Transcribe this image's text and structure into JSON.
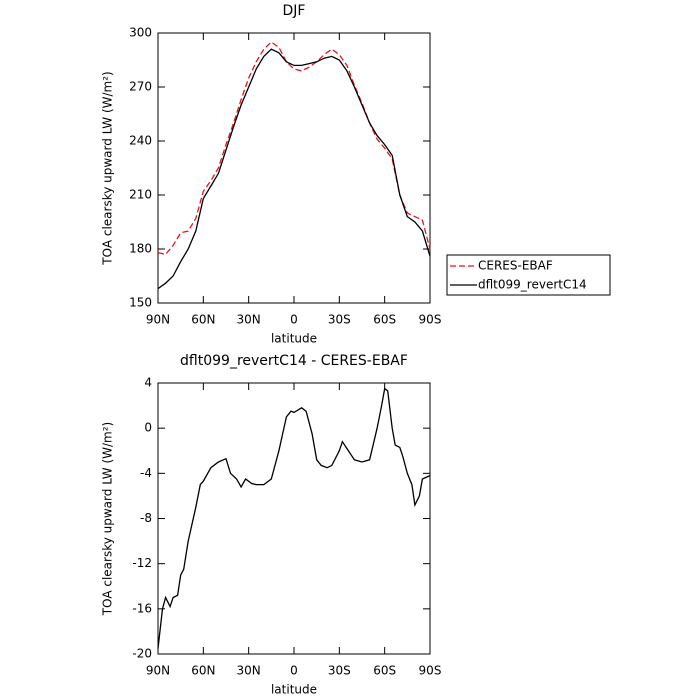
{
  "chart_data": [
    {
      "type": "line",
      "title": "DJF",
      "xlabel": "latitude",
      "ylabel": "TOA clearsky upward LW (W/m²)",
      "x": [
        90,
        85,
        80,
        75,
        70,
        65,
        60,
        55,
        50,
        45,
        40,
        35,
        30,
        25,
        20,
        15,
        10,
        5,
        0,
        -5,
        -10,
        -15,
        -20,
        -25,
        -30,
        -35,
        -40,
        -45,
        -50,
        -55,
        -60,
        -65,
        -70,
        -75,
        -80,
        -85,
        -90
      ],
      "series": [
        {
          "name": "CERES-EBAF",
          "color": "#e8141c",
          "dash": true,
          "values": [
            178,
            177,
            182,
            189,
            190,
            197,
            212,
            218,
            225,
            238,
            250,
            263,
            275,
            284,
            291,
            295,
            292,
            284,
            280,
            279,
            281,
            284,
            288,
            291,
            288,
            282,
            271,
            261,
            250,
            241,
            236,
            230,
            210,
            200,
            198,
            196,
            180
          ]
        },
        {
          "name": "dflt099_revertC14",
          "color": "#000000",
          "dash": false,
          "values": [
            158,
            161,
            165,
            173,
            180,
            190,
            208,
            215,
            222,
            235,
            248,
            260,
            270,
            280,
            287,
            291,
            289,
            284,
            282,
            282,
            283,
            284,
            286,
            287,
            285,
            279,
            270,
            260,
            250,
            243,
            238,
            232,
            210,
            198,
            195,
            190,
            176
          ]
        }
      ],
      "xlim": [
        90,
        -90
      ],
      "xticks": [
        {
          "value": 90,
          "label": "90N"
        },
        {
          "value": 60,
          "label": "60N"
        },
        {
          "value": 30,
          "label": "30N"
        },
        0,
        {
          "value": -30,
          "label": "30S"
        },
        {
          "value": -60,
          "label": "60S"
        },
        {
          "value": -90,
          "label": "90S"
        }
      ],
      "ylim": [
        150,
        300
      ],
      "yticks": [
        150,
        180,
        210,
        240,
        270,
        300
      ],
      "legend": "right"
    },
    {
      "type": "line",
      "title": "dflt099_revertC14 - CERES-EBAF",
      "xlabel": "latitude",
      "ylabel": "TOA clearsky upward LW (W/m²)",
      "x": [
        90,
        87,
        85,
        82,
        80,
        77,
        75,
        73,
        70,
        65,
        62,
        60,
        55,
        50,
        45,
        42,
        38,
        35,
        32,
        28,
        25,
        20,
        15,
        10,
        5,
        2,
        0,
        -5,
        -8,
        -12,
        -15,
        -18,
        -22,
        -25,
        -30,
        -32,
        -35,
        -40,
        -45,
        -50,
        -55,
        -58,
        -60,
        -62,
        -65,
        -67,
        -70,
        -72,
        -75,
        -78,
        -80,
        -83,
        -85,
        -90
      ],
      "series": [
        {
          "color": "#000000",
          "dash": false,
          "values": [
            -19.5,
            -16,
            -15,
            -15.8,
            -15,
            -14.8,
            -13,
            -12.5,
            -10,
            -7,
            -5,
            -4.7,
            -3.5,
            -3,
            -2.7,
            -4,
            -4.5,
            -5.2,
            -4.5,
            -4.9,
            -5,
            -5,
            -4.5,
            -2,
            1,
            1.5,
            1.4,
            1.8,
            1.5,
            -0.5,
            -2.8,
            -3.3,
            -3.5,
            -3.3,
            -2,
            -1.2,
            -1.8,
            -2.8,
            -3,
            -2.8,
            0,
            2,
            3.5,
            3.3,
            0,
            -1.5,
            -1.7,
            -2.5,
            -4,
            -5,
            -6.8,
            -6,
            -4.5,
            -4.2
          ]
        }
      ],
      "xlim": [
        90,
        -90
      ],
      "xticks": [
        {
          "value": 90,
          "label": "90N"
        },
        {
          "value": 60,
          "label": "60N"
        },
        {
          "value": 30,
          "label": "30N"
        },
        0,
        {
          "value": -30,
          "label": "30S"
        },
        {
          "value": -60,
          "label": "60S"
        },
        {
          "value": -90,
          "label": "90S"
        }
      ],
      "ylim": [
        -20,
        4
      ],
      "yticks": [
        -20,
        -16,
        -12,
        -8,
        -4,
        0,
        4
      ]
    }
  ]
}
